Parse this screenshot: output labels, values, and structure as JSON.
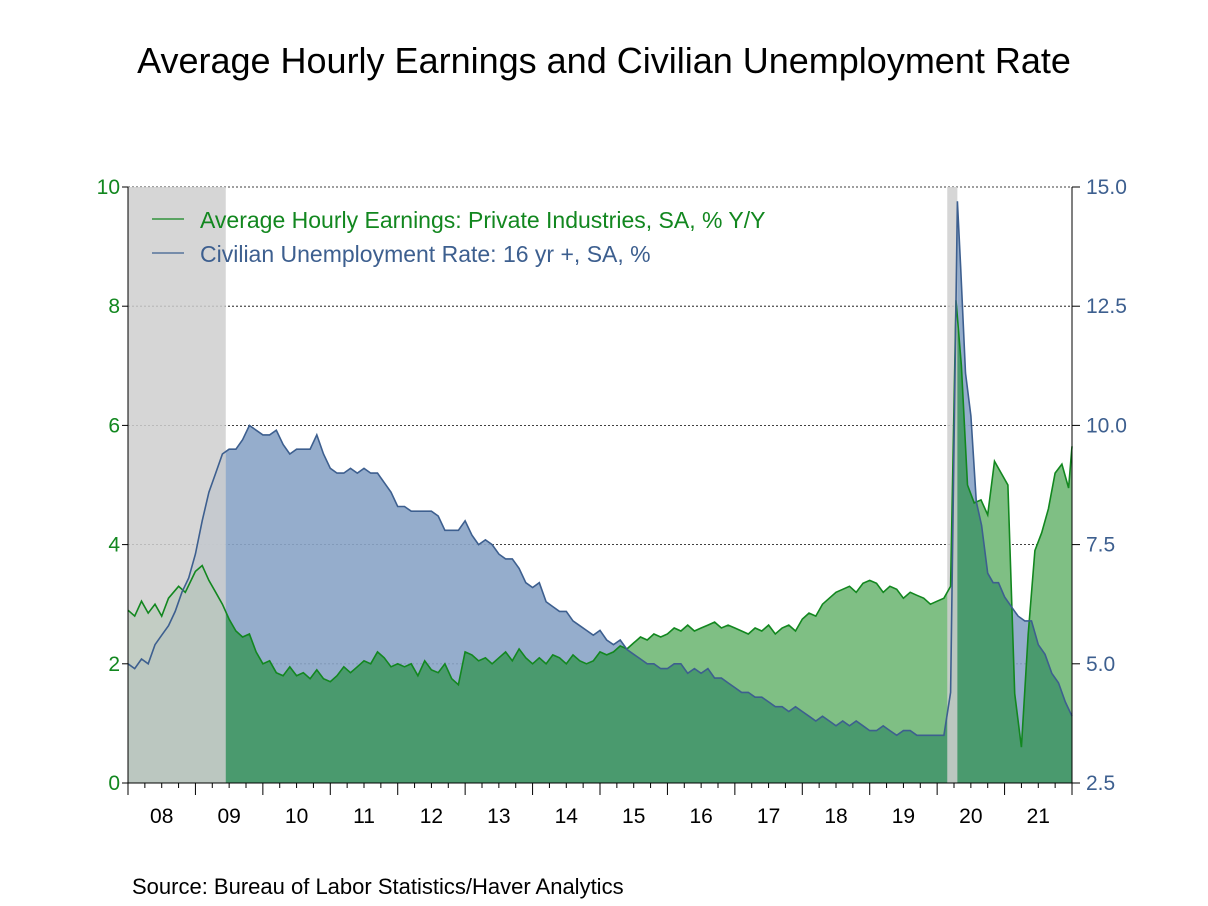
{
  "title": "Average Hourly Earnings and Civilian Unemployment Rate",
  "source": "Source:  Bureau of Labor Statistics/Haver Analytics",
  "chart_data": {
    "type": "area",
    "x_unit": "month (fractional year, 2008.0 = Jan 2008)",
    "xlim": [
      2008,
      2022
    ],
    "x_tick_labels": [
      "08",
      "09",
      "10",
      "11",
      "12",
      "13",
      "14",
      "15",
      "16",
      "17",
      "18",
      "19",
      "20",
      "21"
    ],
    "y_left": {
      "range": [
        0,
        10
      ],
      "ticks": [
        "0",
        "2",
        "4",
        "6",
        "8",
        "10"
      ],
      "color": "#12871f"
    },
    "y_right": {
      "range": [
        2.5,
        15.0
      ],
      "ticks": [
        "2.5",
        "5.0",
        "7.5",
        "10.0",
        "12.5",
        "15.0"
      ],
      "color": "#3d5f8f"
    },
    "grid": "horizontal dotted",
    "legend_position": "top-left",
    "recessions": [
      [
        2008.0,
        2009.45
      ],
      [
        2020.15,
        2020.3
      ]
    ],
    "series": [
      {
        "name": "Average Hourly Earnings: Private Industries, SA, % Y/Y",
        "axis": "left",
        "color": "#12871f",
        "points": [
          [
            2008.0,
            2.9
          ],
          [
            2008.1,
            2.8
          ],
          [
            2008.2,
            3.05
          ],
          [
            2008.3,
            2.85
          ],
          [
            2008.4,
            3.0
          ],
          [
            2008.5,
            2.8
          ],
          [
            2008.6,
            3.1
          ],
          [
            2008.75,
            3.3
          ],
          [
            2008.85,
            3.2
          ],
          [
            2009.0,
            3.55
          ],
          [
            2009.1,
            3.65
          ],
          [
            2009.2,
            3.4
          ],
          [
            2009.3,
            3.2
          ],
          [
            2009.4,
            3.0
          ],
          [
            2009.5,
            2.75
          ],
          [
            2009.6,
            2.55
          ],
          [
            2009.7,
            2.45
          ],
          [
            2009.8,
            2.5
          ],
          [
            2009.9,
            2.2
          ],
          [
            2010.0,
            2.0
          ],
          [
            2010.1,
            2.05
          ],
          [
            2010.2,
            1.85
          ],
          [
            2010.3,
            1.8
          ],
          [
            2010.4,
            1.95
          ],
          [
            2010.5,
            1.8
          ],
          [
            2010.6,
            1.85
          ],
          [
            2010.7,
            1.75
          ],
          [
            2010.8,
            1.9
          ],
          [
            2010.9,
            1.75
          ],
          [
            2011.0,
            1.7
          ],
          [
            2011.1,
            1.8
          ],
          [
            2011.2,
            1.95
          ],
          [
            2011.3,
            1.85
          ],
          [
            2011.4,
            1.95
          ],
          [
            2011.5,
            2.05
          ],
          [
            2011.6,
            2.0
          ],
          [
            2011.7,
            2.2
          ],
          [
            2011.8,
            2.1
          ],
          [
            2011.9,
            1.95
          ],
          [
            2012.0,
            2.0
          ],
          [
            2012.1,
            1.95
          ],
          [
            2012.2,
            2.0
          ],
          [
            2012.3,
            1.8
          ],
          [
            2012.4,
            2.05
          ],
          [
            2012.5,
            1.9
          ],
          [
            2012.6,
            1.85
          ],
          [
            2012.7,
            2.0
          ],
          [
            2012.8,
            1.75
          ],
          [
            2012.9,
            1.65
          ],
          [
            2013.0,
            2.2
          ],
          [
            2013.1,
            2.15
          ],
          [
            2013.2,
            2.05
          ],
          [
            2013.3,
            2.1
          ],
          [
            2013.4,
            2.0
          ],
          [
            2013.5,
            2.1
          ],
          [
            2013.6,
            2.2
          ],
          [
            2013.7,
            2.05
          ],
          [
            2013.8,
            2.25
          ],
          [
            2013.9,
            2.1
          ],
          [
            2014.0,
            2.0
          ],
          [
            2014.1,
            2.1
          ],
          [
            2014.2,
            2.0
          ],
          [
            2014.3,
            2.15
          ],
          [
            2014.4,
            2.1
          ],
          [
            2014.5,
            2.0
          ],
          [
            2014.6,
            2.15
          ],
          [
            2014.7,
            2.05
          ],
          [
            2014.8,
            2.0
          ],
          [
            2014.9,
            2.05
          ],
          [
            2015.0,
            2.2
          ],
          [
            2015.1,
            2.15
          ],
          [
            2015.2,
            2.2
          ],
          [
            2015.3,
            2.3
          ],
          [
            2015.4,
            2.25
          ],
          [
            2015.5,
            2.35
          ],
          [
            2015.6,
            2.45
          ],
          [
            2015.7,
            2.4
          ],
          [
            2015.8,
            2.5
          ],
          [
            2015.9,
            2.45
          ],
          [
            2016.0,
            2.5
          ],
          [
            2016.1,
            2.6
          ],
          [
            2016.2,
            2.55
          ],
          [
            2016.3,
            2.65
          ],
          [
            2016.4,
            2.55
          ],
          [
            2016.5,
            2.6
          ],
          [
            2016.6,
            2.65
          ],
          [
            2016.7,
            2.7
          ],
          [
            2016.8,
            2.6
          ],
          [
            2016.9,
            2.65
          ],
          [
            2017.0,
            2.6
          ],
          [
            2017.1,
            2.55
          ],
          [
            2017.2,
            2.5
          ],
          [
            2017.3,
            2.6
          ],
          [
            2017.4,
            2.55
          ],
          [
            2017.5,
            2.65
          ],
          [
            2017.6,
            2.5
          ],
          [
            2017.7,
            2.6
          ],
          [
            2017.8,
            2.65
          ],
          [
            2017.9,
            2.55
          ],
          [
            2018.0,
            2.75
          ],
          [
            2018.1,
            2.85
          ],
          [
            2018.2,
            2.8
          ],
          [
            2018.3,
            3.0
          ],
          [
            2018.4,
            3.1
          ],
          [
            2018.5,
            3.2
          ],
          [
            2018.6,
            3.25
          ],
          [
            2018.7,
            3.3
          ],
          [
            2018.8,
            3.2
          ],
          [
            2018.9,
            3.35
          ],
          [
            2019.0,
            3.4
          ],
          [
            2019.1,
            3.35
          ],
          [
            2019.2,
            3.2
          ],
          [
            2019.3,
            3.3
          ],
          [
            2019.4,
            3.25
          ],
          [
            2019.5,
            3.1
          ],
          [
            2019.6,
            3.2
          ],
          [
            2019.7,
            3.15
          ],
          [
            2019.8,
            3.1
          ],
          [
            2019.9,
            3.0
          ],
          [
            2020.0,
            3.05
          ],
          [
            2020.1,
            3.1
          ],
          [
            2020.2,
            3.3
          ],
          [
            2020.28,
            8.1
          ],
          [
            2020.36,
            7.0
          ],
          [
            2020.45,
            5.0
          ],
          [
            2020.55,
            4.7
          ],
          [
            2020.65,
            4.75
          ],
          [
            2020.75,
            4.5
          ],
          [
            2020.85,
            5.4
          ],
          [
            2020.95,
            5.2
          ],
          [
            2021.05,
            5.0
          ],
          [
            2021.15,
            1.5
          ],
          [
            2021.25,
            0.6
          ],
          [
            2021.35,
            2.5
          ],
          [
            2021.45,
            3.9
          ],
          [
            2021.55,
            4.2
          ],
          [
            2021.65,
            4.6
          ],
          [
            2021.75,
            5.2
          ],
          [
            2021.85,
            5.35
          ],
          [
            2021.95,
            4.95
          ],
          [
            2022.0,
            5.65
          ]
        ]
      },
      {
        "name": "Civilian Unemployment Rate: 16 yr +, SA, %",
        "axis": "right",
        "color": "#3d5f8f",
        "points": [
          [
            2008.0,
            5.0
          ],
          [
            2008.1,
            4.9
          ],
          [
            2008.2,
            5.1
          ],
          [
            2008.3,
            5.0
          ],
          [
            2008.4,
            5.4
          ],
          [
            2008.5,
            5.6
          ],
          [
            2008.6,
            5.8
          ],
          [
            2008.7,
            6.1
          ],
          [
            2008.8,
            6.5
          ],
          [
            2008.9,
            6.8
          ],
          [
            2009.0,
            7.3
          ],
          [
            2009.1,
            8.0
          ],
          [
            2009.2,
            8.6
          ],
          [
            2009.3,
            9.0
          ],
          [
            2009.4,
            9.4
          ],
          [
            2009.5,
            9.5
          ],
          [
            2009.6,
            9.5
          ],
          [
            2009.7,
            9.7
          ],
          [
            2009.8,
            10.0
          ],
          [
            2009.9,
            9.9
          ],
          [
            2010.0,
            9.8
          ],
          [
            2010.1,
            9.8
          ],
          [
            2010.2,
            9.9
          ],
          [
            2010.3,
            9.6
          ],
          [
            2010.4,
            9.4
          ],
          [
            2010.5,
            9.5
          ],
          [
            2010.6,
            9.5
          ],
          [
            2010.7,
            9.5
          ],
          [
            2010.8,
            9.8
          ],
          [
            2010.9,
            9.4
          ],
          [
            2011.0,
            9.1
          ],
          [
            2011.1,
            9.0
          ],
          [
            2011.2,
            9.0
          ],
          [
            2011.3,
            9.1
          ],
          [
            2011.4,
            9.0
          ],
          [
            2011.5,
            9.1
          ],
          [
            2011.6,
            9.0
          ],
          [
            2011.7,
            9.0
          ],
          [
            2011.8,
            8.8
          ],
          [
            2011.9,
            8.6
          ],
          [
            2012.0,
            8.3
          ],
          [
            2012.1,
            8.3
          ],
          [
            2012.2,
            8.2
          ],
          [
            2012.3,
            8.2
          ],
          [
            2012.4,
            8.2
          ],
          [
            2012.5,
            8.2
          ],
          [
            2012.6,
            8.1
          ],
          [
            2012.7,
            7.8
          ],
          [
            2012.8,
            7.8
          ],
          [
            2012.9,
            7.8
          ],
          [
            2013.0,
            8.0
          ],
          [
            2013.1,
            7.7
          ],
          [
            2013.2,
            7.5
          ],
          [
            2013.3,
            7.6
          ],
          [
            2013.4,
            7.5
          ],
          [
            2013.5,
            7.3
          ],
          [
            2013.6,
            7.2
          ],
          [
            2013.7,
            7.2
          ],
          [
            2013.8,
            7.0
          ],
          [
            2013.9,
            6.7
          ],
          [
            2014.0,
            6.6
          ],
          [
            2014.1,
            6.7
          ],
          [
            2014.2,
            6.3
          ],
          [
            2014.3,
            6.2
          ],
          [
            2014.4,
            6.1
          ],
          [
            2014.5,
            6.1
          ],
          [
            2014.6,
            5.9
          ],
          [
            2014.7,
            5.8
          ],
          [
            2014.8,
            5.7
          ],
          [
            2014.9,
            5.6
          ],
          [
            2015.0,
            5.7
          ],
          [
            2015.1,
            5.5
          ],
          [
            2015.2,
            5.4
          ],
          [
            2015.3,
            5.5
          ],
          [
            2015.4,
            5.3
          ],
          [
            2015.5,
            5.2
          ],
          [
            2015.6,
            5.1
          ],
          [
            2015.7,
            5.0
          ],
          [
            2015.8,
            5.0
          ],
          [
            2015.9,
            4.9
          ],
          [
            2016.0,
            4.9
          ],
          [
            2016.1,
            5.0
          ],
          [
            2016.2,
            5.0
          ],
          [
            2016.3,
            4.8
          ],
          [
            2016.4,
            4.9
          ],
          [
            2016.5,
            4.8
          ],
          [
            2016.6,
            4.9
          ],
          [
            2016.7,
            4.7
          ],
          [
            2016.8,
            4.7
          ],
          [
            2016.9,
            4.6
          ],
          [
            2017.0,
            4.5
          ],
          [
            2017.1,
            4.4
          ],
          [
            2017.2,
            4.4
          ],
          [
            2017.3,
            4.3
          ],
          [
            2017.4,
            4.3
          ],
          [
            2017.5,
            4.2
          ],
          [
            2017.6,
            4.1
          ],
          [
            2017.7,
            4.1
          ],
          [
            2017.8,
            4.0
          ],
          [
            2017.9,
            4.1
          ],
          [
            2018.0,
            4.0
          ],
          [
            2018.1,
            3.9
          ],
          [
            2018.2,
            3.8
          ],
          [
            2018.3,
            3.9
          ],
          [
            2018.4,
            3.8
          ],
          [
            2018.5,
            3.7
          ],
          [
            2018.6,
            3.8
          ],
          [
            2018.7,
            3.7
          ],
          [
            2018.8,
            3.8
          ],
          [
            2018.9,
            3.7
          ],
          [
            2019.0,
            3.6
          ],
          [
            2019.1,
            3.6
          ],
          [
            2019.2,
            3.7
          ],
          [
            2019.3,
            3.6
          ],
          [
            2019.4,
            3.5
          ],
          [
            2019.5,
            3.6
          ],
          [
            2019.6,
            3.6
          ],
          [
            2019.7,
            3.5
          ],
          [
            2019.8,
            3.5
          ],
          [
            2019.9,
            3.5
          ],
          [
            2020.0,
            3.5
          ],
          [
            2020.1,
            3.5
          ],
          [
            2020.2,
            4.4
          ],
          [
            2020.3,
            14.7
          ],
          [
            2020.35,
            13.3
          ],
          [
            2020.42,
            11.1
          ],
          [
            2020.5,
            10.2
          ],
          [
            2020.58,
            8.4
          ],
          [
            2020.66,
            7.9
          ],
          [
            2020.75,
            6.9
          ],
          [
            2020.83,
            6.7
          ],
          [
            2020.91,
            6.7
          ],
          [
            2021.0,
            6.4
          ],
          [
            2021.1,
            6.2
          ],
          [
            2021.2,
            6.0
          ],
          [
            2021.3,
            5.9
          ],
          [
            2021.4,
            5.9
          ],
          [
            2021.5,
            5.4
          ],
          [
            2021.6,
            5.2
          ],
          [
            2021.7,
            4.8
          ],
          [
            2021.8,
            4.6
          ],
          [
            2021.9,
            4.2
          ],
          [
            2022.0,
            3.9
          ]
        ]
      }
    ]
  }
}
